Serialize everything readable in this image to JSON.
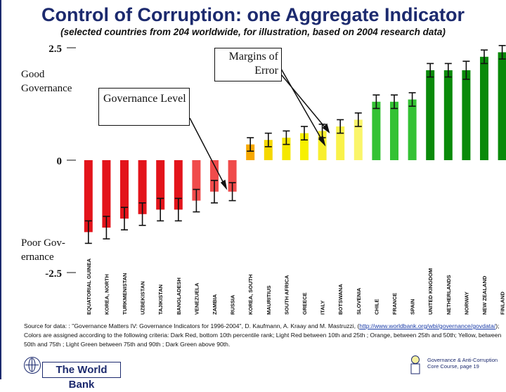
{
  "title": "Control of Corruption: one Aggregate Indicator",
  "subtitle": "(selected countries from 204 worldwide, for illustration, based on 2004 research data)",
  "y_axis_labels": {
    "top_value": "2.5",
    "top_text": "Good Governance",
    "zero_value": "0",
    "bottom_text": "Poor Gov-ernance",
    "bottom_value": "-2.5"
  },
  "annotations": {
    "margins": "Margins of Error",
    "governance": "Governance Level"
  },
  "chart_data": {
    "type": "bar",
    "title": "Control of Corruption: one Aggregate Indicator",
    "ylabel": "Governance Level",
    "ylim": [
      -2.5,
      2.5
    ],
    "categories": [
      "EQUATORIAL GUINEA",
      "KOREA, NORTH",
      "TURKMENISTAN",
      "UZBEKISTAN",
      "TAJIKISTAN",
      "BANGLADESH",
      "VENEZUELA",
      "ZAMBIA",
      "RUSSIA",
      "KOREA, SOUTH",
      "MAURITIUS",
      "SOUTH AFRICA",
      "GREECE",
      "ITALY",
      "BOTSWANA",
      "SLOVENIA",
      "CHILE",
      "FRANCE",
      "SPAIN",
      "UNITED KINGDOM",
      "NETHERLANDS",
      "NORWAY",
      "NEW ZEALAND",
      "FINLAND"
    ],
    "values": [
      -1.6,
      -1.5,
      -1.3,
      -1.2,
      -1.1,
      -1.1,
      -0.9,
      -0.7,
      -0.7,
      0.35,
      0.45,
      0.5,
      0.6,
      0.65,
      0.75,
      0.9,
      1.3,
      1.3,
      1.35,
      2.0,
      2.0,
      2.0,
      2.3,
      2.4
    ],
    "error": [
      0.25,
      0.25,
      0.25,
      0.25,
      0.25,
      0.25,
      0.25,
      0.25,
      0.2,
      0.15,
      0.15,
      0.15,
      0.15,
      0.15,
      0.15,
      0.15,
      0.15,
      0.15,
      0.15,
      0.15,
      0.15,
      0.2,
      0.15,
      0.15
    ],
    "colors": [
      "#e3141b",
      "#e3141b",
      "#e3141b",
      "#e3141b",
      "#e3141b",
      "#e3141b",
      "#f04b4b",
      "#f04b4b",
      "#f04b4b",
      "#f7a800",
      "#f5d800",
      "#f5e800",
      "#f7f000",
      "#f8ef30",
      "#f9f24a",
      "#faf56a",
      "#34c234",
      "#34c234",
      "#34c234",
      "#0a8a0a",
      "#0a8a0a",
      "#0a8a0a",
      "#0a8a0a",
      "#0a8a0a"
    ]
  },
  "footer": {
    "source_prefix": "Source for data: : \"Governance Matters IV: Governance Indicators for 1996-2004\", D. Kaufmann, A. Kraay and M. Mastruzzi,",
    "url": "http://www.worldbank.org/wbi/governance/govdata/",
    "criteria": "); Colors are assigned according to the following criteria: Dark Red, bottom 10th percentile rank; Light Red between 10th and 25th ; Orange, between 25th and 50th; Yellow, between 50th and 75th ; Light Green between 75th and 90th ; Dark Green above 90th.",
    "course": "Governance & Anti-Corruption Core Course, page 19",
    "brand": "The World Bank"
  }
}
